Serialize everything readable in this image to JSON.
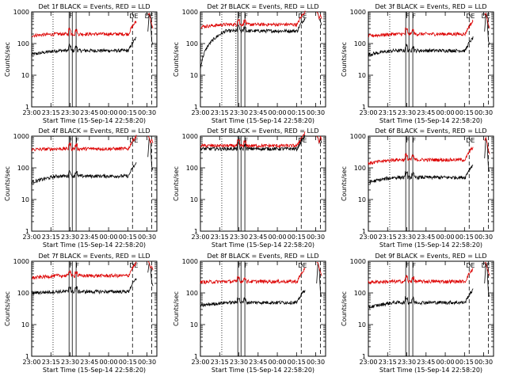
{
  "figure": {
    "xtick_labels": [
      "23:00",
      "23:15",
      "23:30",
      "23:45",
      "00:00",
      "00:15",
      "00:30"
    ],
    "ytick_labels": [
      "1",
      "10",
      "100",
      "1000"
    ],
    "xlabel": "Start Time (15-Sep-14 22:58:20)",
    "ylabel": "Counts/sec",
    "marker_labels": {
      "F": "F",
      "E": "E",
      "DE": "DE"
    },
    "colors": {
      "events": "#000000",
      "lld": "#dd0000",
      "axes": "#000000",
      "background": "#ffffff"
    }
  },
  "chart_data": [
    {
      "type": "line",
      "title": "Det 1f BLACK = Events, RED = LLD",
      "x_range_min": [
        -1.67,
        96
      ],
      "yscale": "log",
      "ylim": [
        1,
        1000
      ],
      "series": [
        {
          "name": "Events",
          "base": 60,
          "start": 45,
          "jump_x": [
            [
              30,
              60
            ],
            [
              40,
              60
            ]
          ],
          "flare": [
            [
              93,
              1000
            ]
          ]
        },
        {
          "name": "LLD",
          "base": 200,
          "start": 180
        }
      ],
      "markers": {
        "dotted": [
          15
        ],
        "solid": [
          27.5,
          30,
          33
        ],
        "dashed": [
          77,
          92
        ],
        "labels": [
          {
            "text": "F",
            "x": 29
          },
          {
            "text": "DE",
            "x": 78
          },
          {
            "text": "DE",
            "x": 90
          }
        ]
      }
    },
    {
      "type": "line",
      "title": "Det 2f BLACK = Events, RED = LLD",
      "x_range_min": [
        -1.67,
        96
      ],
      "yscale": "log",
      "ylim": [
        1,
        1000
      ],
      "series": [
        {
          "name": "Events",
          "base": 250,
          "start": 15
        },
        {
          "name": "LLD",
          "base": 400,
          "start": 340
        }
      ],
      "markers": {
        "dotted": [
          15,
          26
        ],
        "solid": [
          27.5,
          30,
          33
        ],
        "dashed": [
          77,
          92
        ],
        "labels": [
          {
            "text": "F",
            "x": 29
          },
          {
            "text": "F",
            "x": 34
          },
          {
            "text": "DE",
            "x": 78
          }
        ]
      }
    },
    {
      "type": "line",
      "title": "Det 3f BLACK = Events, RED = LLD",
      "x_range_min": [
        -1.67,
        96
      ],
      "yscale": "log",
      "ylim": [
        1,
        1000
      ],
      "series": [
        {
          "name": "Events",
          "base": 60,
          "start": 45
        },
        {
          "name": "LLD",
          "base": 200,
          "start": 175
        }
      ],
      "markers": {
        "dotted": [
          15
        ],
        "solid": [
          27.5,
          30,
          33
        ],
        "dashed": [
          77,
          92
        ],
        "labels": [
          {
            "text": "F",
            "x": 29
          },
          {
            "text": "F",
            "x": 34
          },
          {
            "text": "DE",
            "x": 78
          },
          {
            "text": "DE",
            "x": 90
          }
        ]
      }
    },
    {
      "type": "line",
      "title": "Det 4f BLACK = Events, RED = LLD",
      "x_range_min": [
        -1.67,
        96
      ],
      "yscale": "log",
      "ylim": [
        1,
        1000
      ],
      "series": [
        {
          "name": "Events",
          "base": 55,
          "start": 35
        },
        {
          "name": "LLD",
          "base": 400,
          "start": 380
        }
      ],
      "markers": {
        "dotted": [
          15
        ],
        "solid": [
          27.5,
          30,
          33
        ],
        "dashed": [
          77,
          92
        ],
        "labels": [
          {
            "text": "F",
            "x": 29
          },
          {
            "text": "F",
            "x": 34
          },
          {
            "text": "DE",
            "x": 78
          }
        ]
      }
    },
    {
      "type": "line",
      "title": "Det 5f BLACK = Events, RED = LLD",
      "x_range_min": [
        -1.67,
        96
      ],
      "yscale": "log",
      "ylim": [
        1,
        1000
      ],
      "series": [
        {
          "name": "Events",
          "base": 400,
          "start": 400
        },
        {
          "name": "LLD",
          "base": 500,
          "start": 500
        }
      ],
      "markers": {
        "dotted": [
          15
        ],
        "solid": [
          27.5,
          30,
          33
        ],
        "dashed": [
          77,
          92
        ],
        "labels": [
          {
            "text": "F",
            "x": 29
          },
          {
            "text": "F",
            "x": 34
          },
          {
            "text": "DE",
            "x": 78
          }
        ]
      }
    },
    {
      "type": "line",
      "title": "Det 6f BLACK = Events, RED = LLD",
      "x_range_min": [
        -1.67,
        96
      ],
      "yscale": "log",
      "ylim": [
        1,
        1000
      ],
      "series": [
        {
          "name": "Events",
          "base": 50,
          "start": 35
        },
        {
          "name": "LLD",
          "base": 180,
          "start": 140
        }
      ],
      "markers": {
        "dotted": [
          15
        ],
        "solid": [
          27.5,
          30,
          33
        ],
        "dashed": [
          77,
          92
        ],
        "labels": [
          {
            "text": "F",
            "x": 29
          },
          {
            "text": "F",
            "x": 34
          },
          {
            "text": "DE",
            "x": 78
          }
        ]
      }
    },
    {
      "type": "line",
      "title": "Det 7f BLACK = Events, RED = LLD",
      "x_range_min": [
        -1.67,
        96
      ],
      "yscale": "log",
      "ylim": [
        1,
        1000
      ],
      "series": [
        {
          "name": "Events",
          "base": 110,
          "start": 100
        },
        {
          "name": "LLD",
          "base": 350,
          "start": 300
        }
      ],
      "markers": {
        "dotted": [
          15
        ],
        "solid": [
          27.5,
          30,
          33
        ],
        "dashed": [
          77,
          92
        ],
        "labels": [
          {
            "text": "F",
            "x": 29
          },
          {
            "text": "F",
            "x": 34
          },
          {
            "text": "DE",
            "x": 78
          }
        ]
      }
    },
    {
      "type": "line",
      "title": "Det 8f BLACK = Events, RED = LLD",
      "x_range_min": [
        -1.67,
        96
      ],
      "yscale": "log",
      "ylim": [
        1,
        1000
      ],
      "series": [
        {
          "name": "Events",
          "base": 50,
          "start": 40
        },
        {
          "name": "LLD",
          "base": 230,
          "start": 220
        }
      ],
      "markers": {
        "dotted": [
          15
        ],
        "solid": [
          27.5,
          30,
          33
        ],
        "dashed": [
          77,
          92
        ],
        "labels": [
          {
            "text": "F",
            "x": 29
          },
          {
            "text": "F",
            "x": 34
          },
          {
            "text": "DE",
            "x": 78
          }
        ]
      }
    },
    {
      "type": "line",
      "title": "Det 9f BLACK = Events, RED = LLD",
      "x_range_min": [
        -1.67,
        96
      ],
      "yscale": "log",
      "ylim": [
        1,
        1000
      ],
      "series": [
        {
          "name": "Events",
          "base": 50,
          "start": 35
        },
        {
          "name": "LLD",
          "base": 230,
          "start": 220
        }
      ],
      "markers": {
        "dotted": [
          15
        ],
        "solid": [
          27.5,
          30,
          33
        ],
        "dashed": [
          77,
          92
        ],
        "labels": [
          {
            "text": "F",
            "x": 29
          },
          {
            "text": "F",
            "x": 34
          },
          {
            "text": "DE",
            "x": 78
          },
          {
            "text": "DE",
            "x": 90
          }
        ]
      }
    }
  ]
}
